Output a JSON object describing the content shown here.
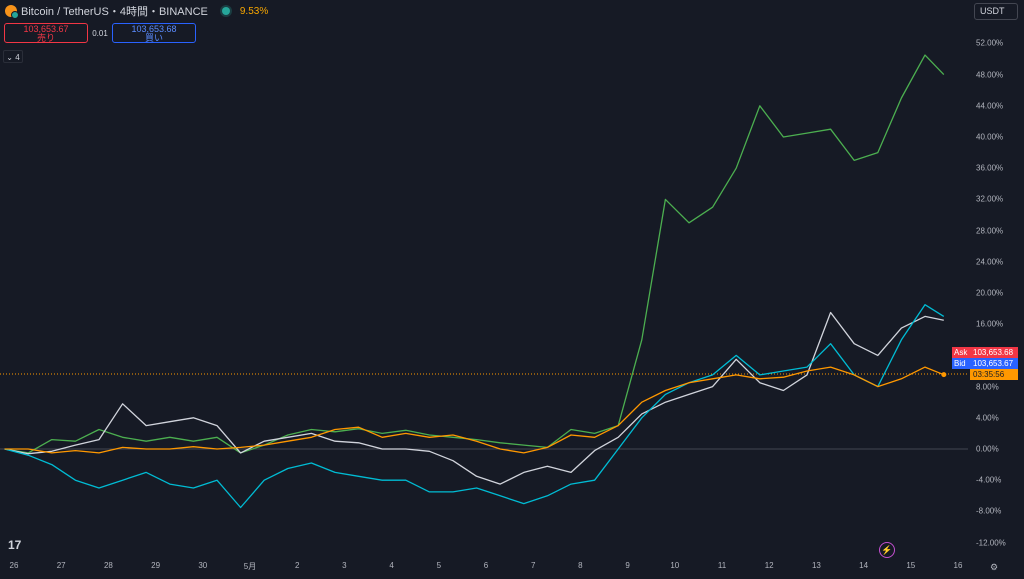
{
  "header": {
    "symbol": "Bitcoin / TetherUS・4時間・BINANCE",
    "change": "9.53%",
    "sell_price": "103,653.67",
    "sell_label": "売り",
    "spread": "0.01",
    "buy_price": "103,653.68",
    "buy_label": "買い",
    "indicators_count": "4",
    "currency": "USDT"
  },
  "chart_data": {
    "type": "line",
    "y_axis": {
      "unit": "%",
      "range": [
        -12,
        52
      ],
      "ticks": [
        "52.00%",
        "48.00%",
        "44.00%",
        "40.00%",
        "36.00%",
        "32.00%",
        "28.00%",
        "24.00%",
        "20.00%",
        "16.00%",
        "12.00%",
        "8.00%",
        "4.00%",
        "0.00%",
        "-4.00%",
        "-8.00%",
        "-12.00%"
      ]
    },
    "x_axis": {
      "ticks": [
        "26",
        "27",
        "28",
        "29",
        "30",
        "5月",
        "2",
        "3",
        "4",
        "5",
        "6",
        "7",
        "8",
        "9",
        "10",
        "11",
        "12",
        "13",
        "14",
        "15",
        "16"
      ]
    },
    "series": [
      {
        "color": "#4caf50",
        "values": [
          [
            25.8,
            0
          ],
          [
            26.3,
            -0.5
          ],
          [
            26.8,
            1.2
          ],
          [
            27.3,
            1
          ],
          [
            27.8,
            2.5
          ],
          [
            28.3,
            1.5
          ],
          [
            28.8,
            1
          ],
          [
            29.3,
            1.5
          ],
          [
            29.8,
            1
          ],
          [
            30.3,
            1.5
          ],
          [
            30.8,
            -0.5
          ],
          [
            31.3,
            0.5
          ],
          [
            31.8,
            1.8
          ],
          [
            32.3,
            2.5
          ],
          [
            32.8,
            2.2
          ],
          [
            33.3,
            2.6
          ],
          [
            33.8,
            2
          ],
          [
            34.3,
            2.4
          ],
          [
            34.8,
            1.8
          ],
          [
            35.3,
            1.5
          ],
          [
            35.8,
            1.2
          ],
          [
            36.3,
            0.8
          ],
          [
            36.8,
            0.5
          ],
          [
            37.3,
            0.2
          ],
          [
            37.8,
            2.5
          ],
          [
            38.3,
            2
          ],
          [
            38.8,
            3
          ],
          [
            39.3,
            14
          ],
          [
            39.8,
            32
          ],
          [
            40.3,
            29
          ],
          [
            40.8,
            31
          ],
          [
            41.3,
            36
          ],
          [
            41.8,
            44
          ],
          [
            42.3,
            40
          ],
          [
            42.8,
            40.5
          ],
          [
            43.3,
            41
          ],
          [
            43.8,
            37
          ],
          [
            44.3,
            38
          ],
          [
            44.8,
            45
          ],
          [
            45.3,
            50.5
          ],
          [
            45.7,
            48
          ]
        ]
      },
      {
        "color": "#d1d4dc",
        "values": [
          [
            25.8,
            0
          ],
          [
            26.3,
            -0.6
          ],
          [
            26.8,
            -0.3
          ],
          [
            27.3,
            0.5
          ],
          [
            27.8,
            1.2
          ],
          [
            28.3,
            5.8
          ],
          [
            28.8,
            3
          ],
          [
            29.3,
            3.5
          ],
          [
            29.8,
            4
          ],
          [
            30.3,
            3
          ],
          [
            30.8,
            -0.5
          ],
          [
            31.3,
            1
          ],
          [
            31.8,
            1.5
          ],
          [
            32.3,
            2
          ],
          [
            32.8,
            1
          ],
          [
            33.3,
            0.8
          ],
          [
            33.8,
            0
          ],
          [
            34.3,
            0
          ],
          [
            34.8,
            -0.3
          ],
          [
            35.3,
            -1.5
          ],
          [
            35.8,
            -3.5
          ],
          [
            36.3,
            -4.5
          ],
          [
            36.8,
            -3
          ],
          [
            37.3,
            -2.2
          ],
          [
            37.8,
            -3
          ],
          [
            38.3,
            -0.2
          ],
          [
            38.8,
            1.5
          ],
          [
            39.3,
            4.5
          ],
          [
            39.8,
            6
          ],
          [
            40.3,
            7
          ],
          [
            40.8,
            8
          ],
          [
            41.3,
            11.5
          ],
          [
            41.8,
            8.5
          ],
          [
            42.3,
            7.5
          ],
          [
            42.8,
            9.5
          ],
          [
            43.3,
            17.5
          ],
          [
            43.8,
            13.5
          ],
          [
            44.3,
            12
          ],
          [
            44.8,
            15.5
          ],
          [
            45.3,
            17
          ],
          [
            45.7,
            16.5
          ]
        ]
      },
      {
        "color": "#00bcd4",
        "values": [
          [
            25.8,
            0
          ],
          [
            26.3,
            -0.8
          ],
          [
            26.8,
            -2
          ],
          [
            27.3,
            -4
          ],
          [
            27.8,
            -5
          ],
          [
            28.3,
            -4
          ],
          [
            28.8,
            -3
          ],
          [
            29.3,
            -4.5
          ],
          [
            29.8,
            -5
          ],
          [
            30.3,
            -4
          ],
          [
            30.8,
            -7.5
          ],
          [
            31.3,
            -4
          ],
          [
            31.8,
            -2.5
          ],
          [
            32.3,
            -1.8
          ],
          [
            32.8,
            -3
          ],
          [
            33.3,
            -3.5
          ],
          [
            33.8,
            -4
          ],
          [
            34.3,
            -4
          ],
          [
            34.8,
            -5.5
          ],
          [
            35.3,
            -5.5
          ],
          [
            35.8,
            -5
          ],
          [
            36.3,
            -6
          ],
          [
            36.8,
            -7
          ],
          [
            37.3,
            -6
          ],
          [
            37.8,
            -4.5
          ],
          [
            38.3,
            -4
          ],
          [
            38.8,
            0
          ],
          [
            39.3,
            4
          ],
          [
            39.8,
            7
          ],
          [
            40.3,
            8.5
          ],
          [
            40.8,
            9.5
          ],
          [
            41.3,
            12
          ],
          [
            41.8,
            9.5
          ],
          [
            42.3,
            10
          ],
          [
            42.8,
            10.5
          ],
          [
            43.3,
            13.5
          ],
          [
            43.8,
            9.5
          ],
          [
            44.3,
            8
          ],
          [
            44.8,
            14
          ],
          [
            45.3,
            18.5
          ],
          [
            45.7,
            17
          ]
        ]
      },
      {
        "color": "#ff9800",
        "values": [
          [
            25.8,
            0
          ],
          [
            26.3,
            0
          ],
          [
            26.8,
            -0.5
          ],
          [
            27.3,
            -0.2
          ],
          [
            27.8,
            -0.5
          ],
          [
            28.3,
            0.2
          ],
          [
            28.8,
            0
          ],
          [
            29.3,
            0
          ],
          [
            29.8,
            0.3
          ],
          [
            30.3,
            0
          ],
          [
            30.8,
            0.2
          ],
          [
            31.3,
            0.5
          ],
          [
            31.8,
            1
          ],
          [
            32.3,
            1.5
          ],
          [
            32.8,
            2.5
          ],
          [
            33.3,
            2.8
          ],
          [
            33.8,
            1.5
          ],
          [
            34.3,
            2
          ],
          [
            34.8,
            1.5
          ],
          [
            35.3,
            1.8
          ],
          [
            35.8,
            1
          ],
          [
            36.3,
            0
          ],
          [
            36.8,
            -0.5
          ],
          [
            37.3,
            0.2
          ],
          [
            37.8,
            1.8
          ],
          [
            38.3,
            1.5
          ],
          [
            38.8,
            3
          ],
          [
            39.3,
            6
          ],
          [
            39.8,
            7.5
          ],
          [
            40.3,
            8.5
          ],
          [
            40.8,
            9
          ],
          [
            41.3,
            9.5
          ],
          [
            41.8,
            9
          ],
          [
            42.3,
            9.2
          ],
          [
            42.8,
            10
          ],
          [
            43.3,
            10.5
          ],
          [
            43.8,
            9.5
          ],
          [
            44.3,
            8
          ],
          [
            44.8,
            9
          ],
          [
            45.3,
            10.5
          ],
          [
            45.7,
            9.53
          ]
        ]
      }
    ],
    "price_labels": [
      {
        "name": "Ask",
        "value": "103,653.68",
        "color": "#f23645"
      },
      {
        "name": "Bid",
        "value": "103,653.67",
        "color": "#2962ff"
      },
      {
        "name": "",
        "value": "03:35:56",
        "color": "#ff9800"
      }
    ]
  }
}
